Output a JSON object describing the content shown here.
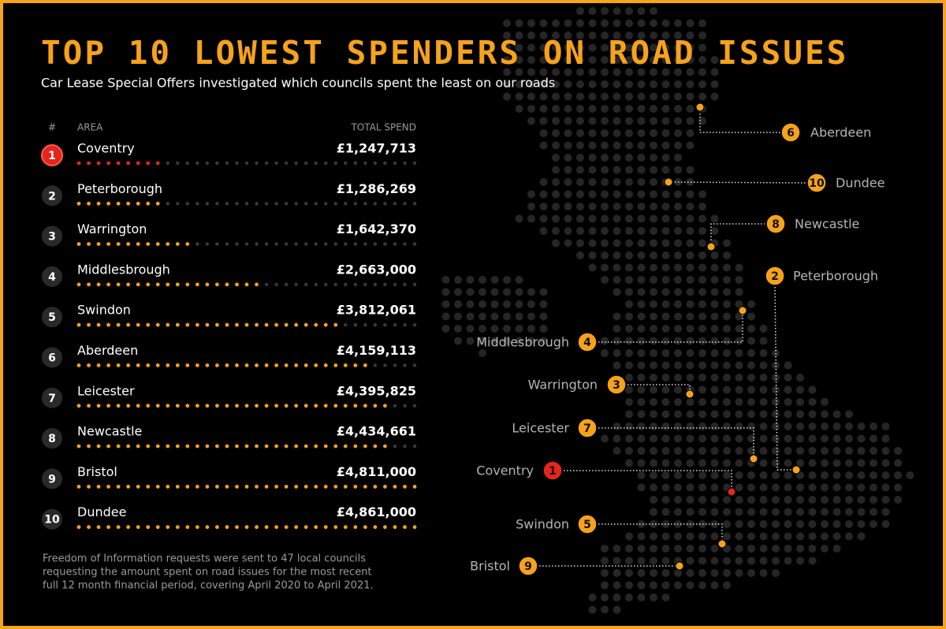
{
  "chart_data": {
    "type": "dotbar",
    "title": "TOP 10 LOWEST SPENDERS ON ROAD ISSUES",
    "subtitle": "Car Lease Special Offers investigated which councils spent the least on our roads",
    "column_labels": [
      "#",
      "AREA",
      "TOTAL SPEND"
    ],
    "ranks": [
      1,
      2,
      3,
      4,
      5,
      6,
      7,
      8,
      9,
      10
    ],
    "categories": [
      "Coventry",
      "Peterborough",
      "Warrington",
      "Middlesbrough",
      "Swindon",
      "Aberdeen",
      "Leicester",
      "Newcastle",
      "Bristol",
      "Dundee"
    ],
    "values": [
      1247713,
      1286269,
      1642370,
      2663000,
      3812061,
      4159113,
      4395825,
      4434661,
      4811000,
      4861000
    ],
    "value_labels": [
      "£1,247,713",
      "£1,286,269",
      "£1,642,370",
      "£2,663,000",
      "£3,812,061",
      "£4,159,113",
      "£4,395,825",
      "£4,434,661",
      "£4,811,000",
      "£4,861,000"
    ],
    "colors": [
      "#e3261c",
      "#f7a21b",
      "#f7a21b",
      "#f7a21b",
      "#f7a21b",
      "#f7a21b",
      "#f7a21b",
      "#f7a21b",
      "#f7a21b",
      "#f7a21b"
    ],
    "xlim": [
      0,
      4861000
    ],
    "note": [
      "Freedom of Information requests were sent to 47 local councils",
      "requesting the amount spent on road issues for the most recent",
      "full 12 month financial period, covering April 2020 to April 2021."
    ]
  }
}
